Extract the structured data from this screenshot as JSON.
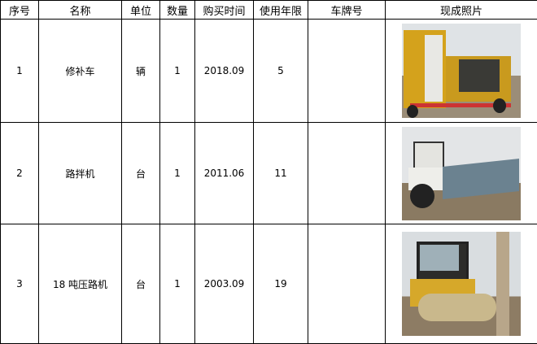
{
  "headers": [
    "序号",
    "名称",
    "单位",
    "数量",
    "购买时间",
    "使用年限",
    "车牌号",
    "现成照片"
  ],
  "rows": [
    {
      "no": "1",
      "name": "修补车",
      "unit": "辆",
      "qty": "1",
      "date": "2018.09",
      "years": "5",
      "plate": "",
      "photo": "yellow repair truck"
    },
    {
      "no": "2",
      "name": "路拌机",
      "unit": "台",
      "qty": "1",
      "date": "2011.06",
      "years": "11",
      "plate": "",
      "photo": "road mixer"
    },
    {
      "no": "3",
      "name": "18 吨压路机",
      "unit": "台",
      "qty": "1",
      "date": "2003.09",
      "years": "19",
      "plate": "",
      "photo": "road roller"
    }
  ]
}
